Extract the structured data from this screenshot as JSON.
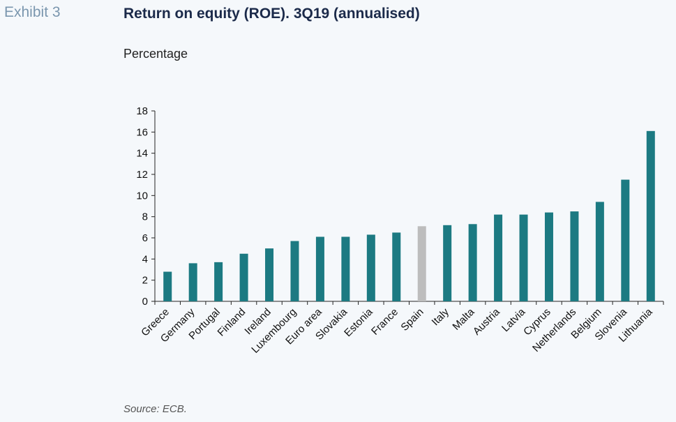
{
  "exhibit_label": "Exhibit 3",
  "source": "Source: ECB.",
  "colors": {
    "bar": "#1c7a82",
    "highlight": "#bdbdbd",
    "axis": "#222222"
  },
  "chart_data": {
    "type": "bar",
    "title": "Return on equity (ROE). 3Q19 (annualised)",
    "ylabel": "Percentage",
    "xlabel": "",
    "ylim": [
      0,
      18
    ],
    "yticks": [
      0,
      2,
      4,
      6,
      8,
      10,
      12,
      14,
      16,
      18
    ],
    "grid": false,
    "categories": [
      "Greece",
      "Germany",
      "Portugal",
      "Finland",
      "Ireland",
      "Luxembourg",
      "Euro area",
      "Slovakia",
      "Estonia",
      "France",
      "Spain",
      "Italy",
      "Malta",
      "Austria",
      "Latvia",
      "Cyprus",
      "Netherlands",
      "Belgium",
      "Slovenia",
      "Lithuania"
    ],
    "values": [
      2.8,
      3.6,
      3.7,
      4.5,
      5.0,
      5.7,
      6.1,
      6.1,
      6.3,
      6.5,
      7.1,
      7.2,
      7.3,
      8.2,
      8.2,
      8.4,
      8.5,
      9.4,
      11.5,
      16.1
    ],
    "highlight": "Spain"
  }
}
